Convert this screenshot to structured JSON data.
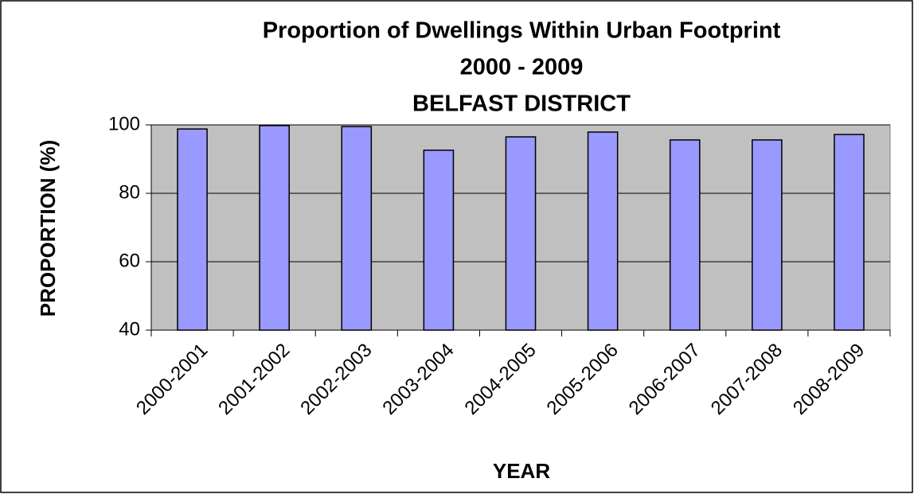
{
  "chart_data": {
    "type": "bar",
    "title": [
      "Proportion of Dwellings Within Urban Footprint",
      "2000 - 2009",
      "BELFAST DISTRICT"
    ],
    "x_label": "YEAR",
    "y_label": "PROPORTION (%)",
    "categories": [
      "2000-2001",
      "2001-2002",
      "2002-2003",
      "2003-2004",
      "2004-2005",
      "2005-2006",
      "2006-2007",
      "2007-2008",
      "2008-2009"
    ],
    "values": [
      98.8,
      99.8,
      99.5,
      92.6,
      96.5,
      97.9,
      95.6,
      95.6,
      97.2
    ],
    "color": "#9999ff",
    "ylim": [
      40,
      100
    ],
    "yticks": [
      40,
      60,
      80,
      100
    ],
    "grid": true
  }
}
